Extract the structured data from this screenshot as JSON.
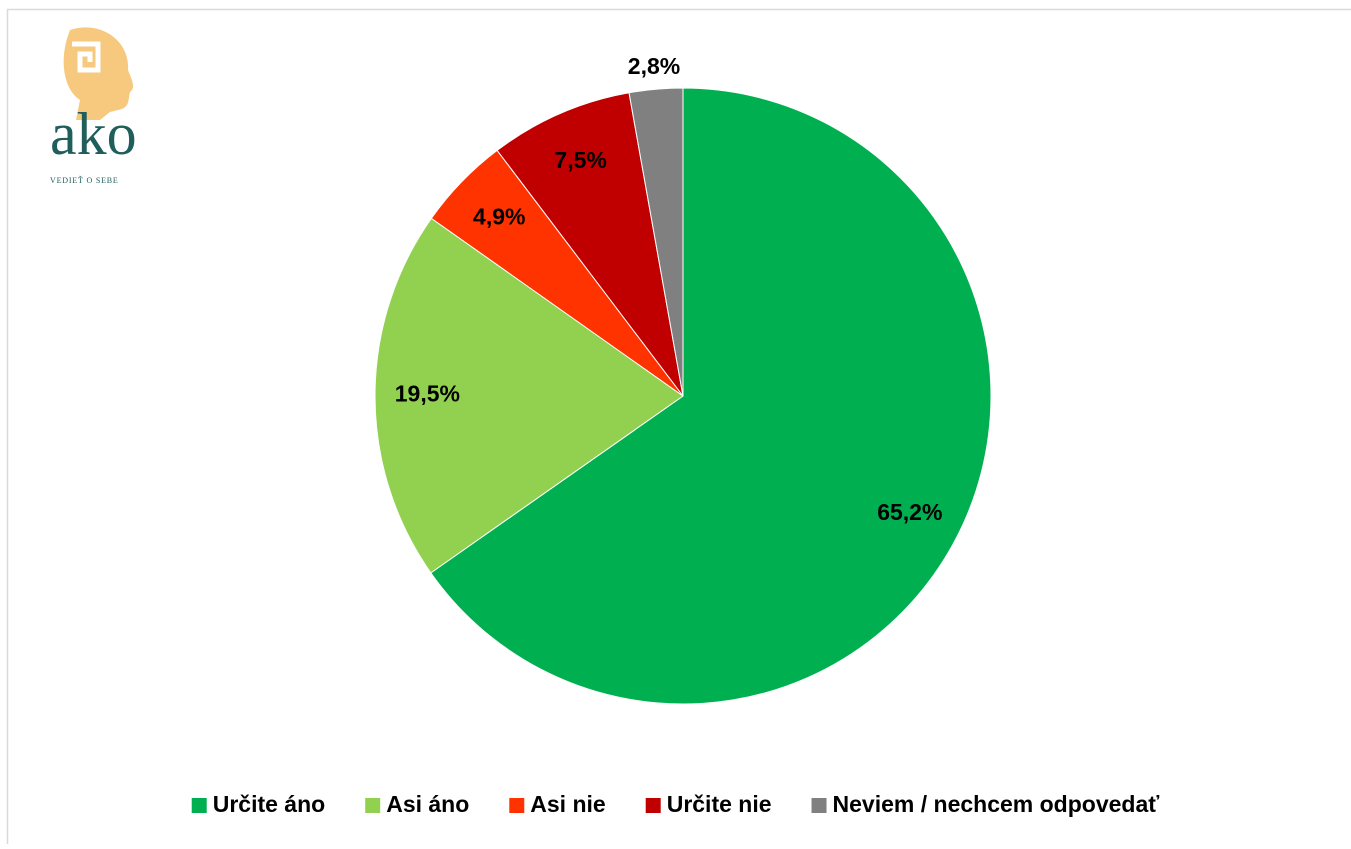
{
  "logo": {
    "text": "ako",
    "tagline": "VEDIEŤ O SEBE"
  },
  "chart_data": {
    "type": "pie",
    "categories": [
      "Určite áno",
      "Asi áno",
      "Asi nie",
      "Určite nie",
      "Neviem / nechcem odpovedať"
    ],
    "values": [
      65.2,
      19.5,
      4.9,
      7.5,
      2.8
    ],
    "value_labels": [
      "65,2%",
      "19,5%",
      "4,9%",
      "7,5%",
      "2,8%"
    ],
    "colors": [
      "#00b050",
      "#92d050",
      "#ff3300",
      "#c00000",
      "#808080"
    ],
    "start_angle": 0,
    "direction": "clockwise",
    "legend": "bottom"
  }
}
